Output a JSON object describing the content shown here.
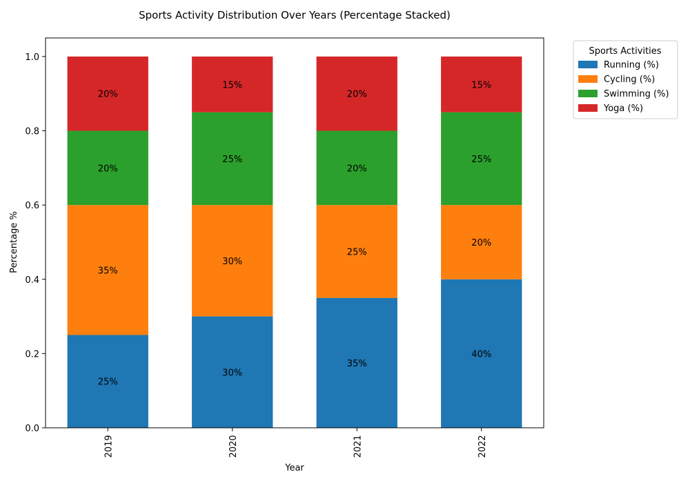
{
  "chart_data": {
    "type": "bar",
    "stacked": true,
    "title": "Sports Activity Distribution Over Years (Percentage Stacked)",
    "xlabel": "Year",
    "ylabel": "Percentage %",
    "categories": [
      "2019",
      "2020",
      "2021",
      "2022"
    ],
    "ylim": [
      0,
      1.05
    ],
    "yticks": [
      0.0,
      0.2,
      0.4,
      0.6,
      0.8,
      1.0
    ],
    "ytick_labels": [
      "0.0",
      "0.2",
      "0.4",
      "0.6",
      "0.8",
      "1.0"
    ],
    "series": [
      {
        "name": "Running (%)",
        "color": "#1f77b4",
        "values": [
          0.25,
          0.3,
          0.35,
          0.4
        ],
        "labels": [
          "25%",
          "30%",
          "35%",
          "40%"
        ]
      },
      {
        "name": "Cycling (%)",
        "color": "#ff7f0e",
        "values": [
          0.35,
          0.3,
          0.25,
          0.2
        ],
        "labels": [
          "35%",
          "30%",
          "25%",
          "20%"
        ]
      },
      {
        "name": "Swimming (%)",
        "color": "#2ca02c",
        "values": [
          0.2,
          0.25,
          0.2,
          0.25
        ],
        "labels": [
          "20%",
          "25%",
          "20%",
          "25%"
        ]
      },
      {
        "name": "Yoga (%)",
        "color": "#d62728",
        "values": [
          0.2,
          0.15,
          0.2,
          0.15
        ],
        "labels": [
          "20%",
          "15%",
          "20%",
          "15%"
        ]
      }
    ],
    "legend": {
      "title": "Sports Activities",
      "placement": "outside-top-right"
    },
    "grid": false
  }
}
